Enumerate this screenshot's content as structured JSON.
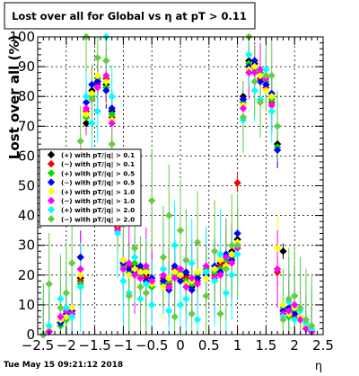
{
  "chart_data": {
    "type": "scatter",
    "title": "Lost over all for Global vs   η at pT > 0.11",
    "xlabel": "η",
    "ylabel": "Lost over all (%)",
    "xlim": [
      -2.5,
      2.5
    ],
    "ylim": [
      0,
      100
    ],
    "grid": true,
    "legend_position": "left-middle",
    "x_ticks": [
      "−2.5",
      "−2",
      "−1.5",
      "−1",
      "−0.5",
      "0",
      "0.5",
      "1",
      "1.5",
      "2",
      "2.5"
    ],
    "y_ticks": [
      "0",
      "10",
      "20",
      "30",
      "40",
      "50",
      "60",
      "70",
      "80",
      "90",
      "100"
    ],
    "timestamp": "Tue May 15 09:21:12 2018",
    "series": [
      {
        "name": "(+) with pT/|q| > 0.1",
        "color": "#000000",
        "x": [
          -2.4,
          -2.3,
          -2.1,
          -2.0,
          -1.9,
          -1.75,
          -1.65,
          -1.55,
          -1.45,
          -1.3,
          -1.2,
          -1.1,
          -1.0,
          -0.9,
          -0.8,
          -0.7,
          -0.6,
          -0.5,
          -0.3,
          -0.2,
          -0.1,
          0.0,
          0.1,
          0.2,
          0.3,
          0.45,
          0.6,
          0.7,
          0.8,
          0.9,
          1.0,
          1.1,
          1.2,
          1.3,
          1.4,
          1.5,
          1.6,
          1.7,
          1.8,
          1.9,
          2.0,
          2.1,
          2.2,
          2.3
        ],
        "y": [
          0,
          1,
          4,
          6,
          8,
          19,
          71,
          82,
          85,
          84,
          75,
          40,
          25,
          22,
          23,
          21,
          20,
          17,
          18,
          16,
          21,
          20,
          20,
          16,
          19,
          20,
          22,
          24,
          26,
          28,
          32,
          80,
          92,
          91,
          87,
          84,
          80,
          64,
          28,
          8,
          7,
          6,
          3,
          1
        ]
      },
      {
        "name": "(−) with pT/|q| > 0.1",
        "color": "#ff0000",
        "x": [
          -2.4,
          -2.3,
          -2.1,
          -2.0,
          -1.9,
          -1.75,
          -1.65,
          -1.55,
          -1.45,
          -1.3,
          -1.2,
          -1.1,
          -1.0,
          -0.9,
          -0.8,
          -0.7,
          -0.6,
          -0.5,
          -0.3,
          -0.2,
          -0.1,
          0.0,
          0.1,
          0.2,
          0.3,
          0.45,
          0.6,
          0.7,
          0.8,
          0.9,
          1.0,
          1.1,
          1.2,
          1.3,
          1.4,
          1.5,
          1.6,
          1.7,
          1.8,
          1.9,
          2.0,
          2.1,
          2.2,
          2.3
        ],
        "y": [
          0,
          1,
          5,
          6,
          7,
          18,
          75,
          80,
          84,
          86,
          73,
          36,
          24,
          23,
          22,
          22,
          19,
          18,
          19,
          17,
          22,
          19,
          19,
          17,
          18,
          21,
          20,
          23,
          24,
          27,
          51,
          79,
          90,
          90,
          86,
          83,
          78,
          21,
          8,
          7,
          6,
          5,
          2,
          1
        ]
      },
      {
        "name": "(+) with pT/|q| > 0.5",
        "color": "#00dd00",
        "x": [
          -2.4,
          -2.3,
          -2.1,
          -2.0,
          -1.9,
          -1.75,
          -1.65,
          -1.55,
          -1.45,
          -1.3,
          -1.2,
          -1.1,
          -1.0,
          -0.9,
          -0.8,
          -0.7,
          -0.6,
          -0.5,
          -0.3,
          -0.2,
          -0.1,
          0.0,
          0.1,
          0.2,
          0.3,
          0.45,
          0.6,
          0.7,
          0.8,
          0.9,
          1.0,
          1.1,
          1.2,
          1.3,
          1.4,
          1.5,
          1.6,
          1.7,
          1.8,
          1.9,
          2.0,
          2.1,
          2.2,
          2.3
        ],
        "y": [
          0,
          1,
          3,
          5,
          6,
          17,
          73,
          80,
          86,
          83,
          74,
          38,
          23,
          21,
          24,
          20,
          22,
          16,
          17,
          18,
          20,
          21,
          18,
          17,
          20,
          22,
          21,
          22,
          25,
          26,
          30,
          78,
          91,
          89,
          88,
          85,
          79,
          63,
          9,
          6,
          8,
          5,
          2,
          1
        ]
      },
      {
        "name": "(−) with pT/|q| > 0.5",
        "color": "#0000ff",
        "x": [
          -2.4,
          -2.3,
          -2.1,
          -2.0,
          -1.9,
          -1.75,
          -1.65,
          -1.55,
          -1.45,
          -1.3,
          -1.2,
          -1.1,
          -1.0,
          -0.9,
          -0.8,
          -0.7,
          -0.6,
          -0.5,
          -0.3,
          -0.2,
          -0.1,
          0.0,
          0.1,
          0.2,
          0.3,
          0.45,
          0.6,
          0.7,
          0.8,
          0.9,
          1.0,
          1.1,
          1.2,
          1.3,
          1.4,
          1.5,
          1.6,
          1.7,
          1.8,
          1.9,
          2.0,
          2.1,
          2.2,
          2.3
        ],
        "y": [
          0,
          1,
          4,
          7,
          8,
          26,
          78,
          84,
          85,
          82,
          76,
          41,
          24,
          22,
          21,
          23,
          18,
          19,
          18,
          15,
          23,
          18,
          21,
          15,
          19,
          20,
          23,
          21,
          27,
          25,
          34,
          79,
          90,
          92,
          85,
          84,
          81,
          62,
          8,
          9,
          7,
          6,
          3,
          1
        ]
      },
      {
        "name": "(+) with pT/|q| > 1.0",
        "color": "#ffff00",
        "x": [
          -2.4,
          -2.3,
          -2.1,
          -2.0,
          -1.9,
          -1.75,
          -1.65,
          -1.55,
          -1.45,
          -1.3,
          -1.2,
          -1.1,
          -1.0,
          -0.9,
          -0.8,
          -0.7,
          -0.6,
          -0.5,
          -0.3,
          -0.2,
          -0.1,
          0.0,
          0.1,
          0.2,
          0.3,
          0.45,
          0.6,
          0.7,
          0.8,
          0.9,
          1.0,
          1.1,
          1.2,
          1.3,
          1.4,
          1.5,
          1.6,
          1.7,
          1.8,
          1.9,
          2.0,
          2.1,
          2.2,
          2.3
        ],
        "y": [
          0,
          2,
          5,
          6,
          9,
          20,
          74,
          81,
          87,
          85,
          72,
          37,
          25,
          20,
          22,
          21,
          21,
          17,
          16,
          19,
          21,
          20,
          17,
          18,
          21,
          19,
          22,
          25,
          23,
          27,
          31,
          77,
          89,
          90,
          87,
          82,
          80,
          29,
          10,
          7,
          9,
          6,
          3,
          1
        ]
      },
      {
        "name": "(−) with pT/|q| > 1.0",
        "color": "#ff00ff",
        "x": [
          -2.4,
          -2.3,
          -2.1,
          -2.0,
          -1.9,
          -1.75,
          -1.65,
          -1.55,
          -1.45,
          -1.3,
          -1.2,
          -1.1,
          -1.0,
          -0.9,
          -0.8,
          -0.7,
          -0.6,
          -0.5,
          -0.3,
          -0.2,
          -0.1,
          0.0,
          0.1,
          0.2,
          0.3,
          0.45,
          0.6,
          0.7,
          0.8,
          0.9,
          1.0,
          1.1,
          1.2,
          1.3,
          1.4,
          1.5,
          1.6,
          1.7,
          1.8,
          1.9,
          2.0,
          2.1,
          2.2,
          2.3
        ],
        "y": [
          0,
          1,
          6,
          8,
          7,
          22,
          76,
          79,
          83,
          87,
          71,
          35,
          22,
          24,
          20,
          19,
          23,
          18,
          20,
          16,
          19,
          22,
          16,
          19,
          17,
          23,
          19,
          20,
          26,
          24,
          29,
          76,
          88,
          88,
          89,
          86,
          77,
          22,
          7,
          8,
          10,
          5,
          2,
          1
        ]
      },
      {
        "name": "(+) with pT/|q| > 2.0",
        "color": "#00ffff",
        "x": [
          -2.4,
          -2.3,
          -2.1,
          -2.0,
          -1.9,
          -1.75,
          -1.65,
          -1.55,
          -1.45,
          -1.3,
          -1.2,
          -1.1,
          -1.0,
          -0.9,
          -0.8,
          -0.7,
          -0.6,
          -0.5,
          -0.3,
          -0.2,
          -0.1,
          0.0,
          0.1,
          0.2,
          0.3,
          0.45,
          0.6,
          0.7,
          0.8,
          0.9,
          1.0,
          1.1,
          1.2,
          1.3,
          1.4,
          1.5,
          1.6,
          1.7,
          1.8,
          1.9,
          2.0,
          2.1,
          2.2,
          2.3
        ],
        "y": [
          0,
          3,
          12,
          9,
          6,
          16,
          80,
          71,
          75,
          100,
          80,
          34,
          18,
          14,
          26,
          12,
          17,
          10,
          22,
          8,
          30,
          10,
          12,
          24,
          5,
          21,
          18,
          27,
          14,
          20,
          27,
          72,
          94,
          82,
          79,
          89,
          75,
          70,
          6,
          11,
          5,
          8,
          4,
          2
        ]
      },
      {
        "name": "(−) with pT/|q| > 2.0",
        "color": "#66cc44",
        "x": [
          -2.4,
          -2.3,
          -2.1,
          -2.0,
          -1.9,
          -1.75,
          -1.65,
          -1.55,
          -1.45,
          -1.3,
          -1.2,
          -1.1,
          -1.0,
          -0.9,
          -0.8,
          -0.7,
          -0.6,
          -0.5,
          -0.3,
          -0.2,
          -0.1,
          0.0,
          0.1,
          0.2,
          0.3,
          0.45,
          0.6,
          0.7,
          0.8,
          0.9,
          1.0,
          1.1,
          1.2,
          1.3,
          1.4,
          1.5,
          1.6,
          1.7,
          1.8,
          1.9,
          2.0,
          2.1,
          2.2,
          2.3
        ],
        "y": [
          0,
          17,
          9,
          14,
          24,
          65,
          100,
          79,
          93,
          92,
          64,
          45,
          37,
          13,
          29,
          16,
          14,
          45,
          26,
          40,
          6,
          35,
          25,
          7,
          31,
          13,
          28,
          7,
          22,
          30,
          30,
          73,
          100,
          85,
          78,
          87,
          87,
          70,
          5,
          12,
          13,
          9,
          5,
          3
        ]
      }
    ]
  }
}
